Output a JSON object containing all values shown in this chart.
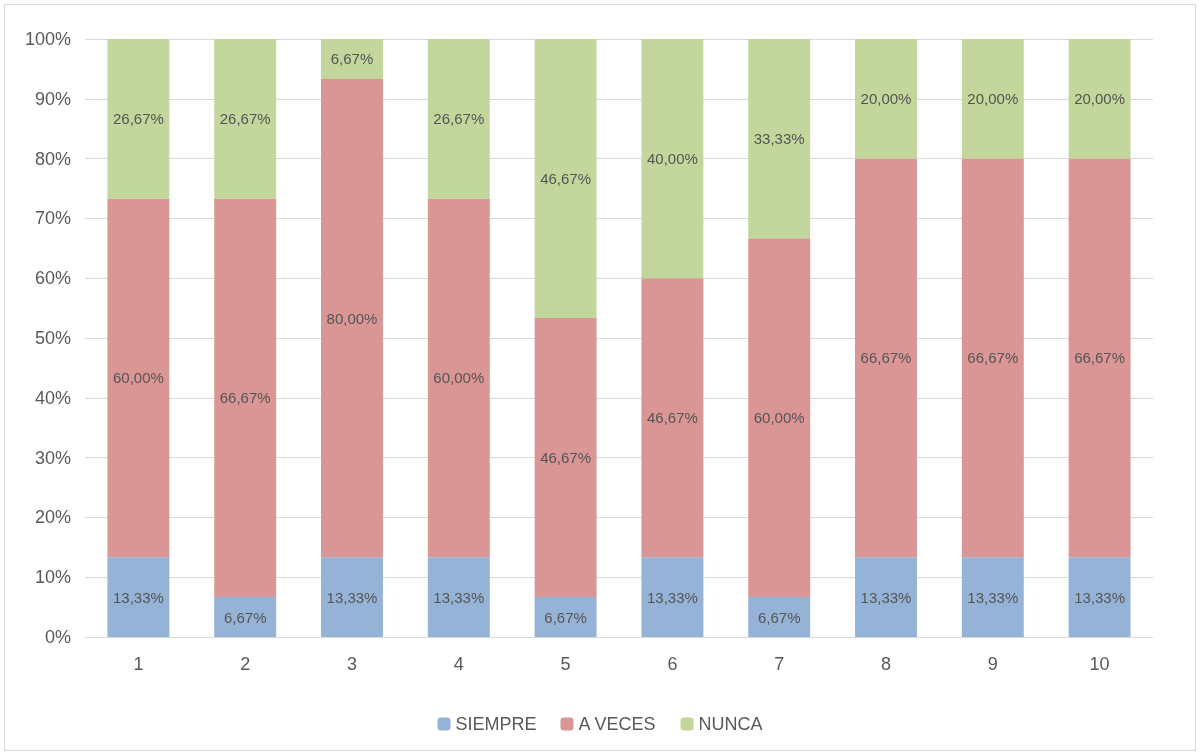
{
  "chart_data": {
    "type": "bar",
    "stacked": true,
    "categories": [
      "1",
      "2",
      "3",
      "4",
      "5",
      "6",
      "7",
      "8",
      "9",
      "10"
    ],
    "series": [
      {
        "name": "SIEMPRE",
        "color": "#95b3d7",
        "values": [
          13.33,
          6.67,
          13.33,
          13.33,
          6.67,
          13.33,
          6.67,
          13.33,
          13.33,
          13.33
        ],
        "value_labels": [
          "13,33%",
          "6,67%",
          "13,33%",
          "13,33%",
          "6,67%",
          "13,33%",
          "6,67%",
          "13,33%",
          "13,33%",
          "13,33%"
        ]
      },
      {
        "name": "A VECES",
        "color": "#d99694",
        "values": [
          60,
          66.67,
          80,
          60,
          46.67,
          46.67,
          60,
          66.67,
          66.67,
          66.67
        ],
        "value_labels": [
          "60,00%",
          "66,67%",
          "80,00%",
          "60,00%",
          "46,67%",
          "46,67%",
          "60,00%",
          "66,67%",
          "66,67%",
          "66,67%"
        ]
      },
      {
        "name": "NUNCA",
        "color": "#c3d69b",
        "values": [
          26.67,
          26.67,
          6.67,
          26.67,
          46.67,
          40,
          33.33,
          20,
          20,
          20
        ],
        "value_labels": [
          "26,67%",
          "26,67%",
          "6,67%",
          "26,67%",
          "46,67%",
          "40,00%",
          "33,33%",
          "20,00%",
          "20,00%",
          "20,00%"
        ]
      }
    ],
    "ylim": [
      0,
      100
    ],
    "yticks": [
      {
        "value": 0,
        "label": "0%"
      },
      {
        "value": 10,
        "label": "10%"
      },
      {
        "value": 20,
        "label": "20%"
      },
      {
        "value": 30,
        "label": "30%"
      },
      {
        "value": 40,
        "label": "40%"
      },
      {
        "value": 50,
        "label": "50%"
      },
      {
        "value": 60,
        "label": "60%"
      },
      {
        "value": 70,
        "label": "70%"
      },
      {
        "value": 80,
        "label": "80%"
      },
      {
        "value": 90,
        "label": "90%"
      },
      {
        "value": 100,
        "label": "100%"
      }
    ],
    "grid": "y",
    "legend": "bottom"
  }
}
